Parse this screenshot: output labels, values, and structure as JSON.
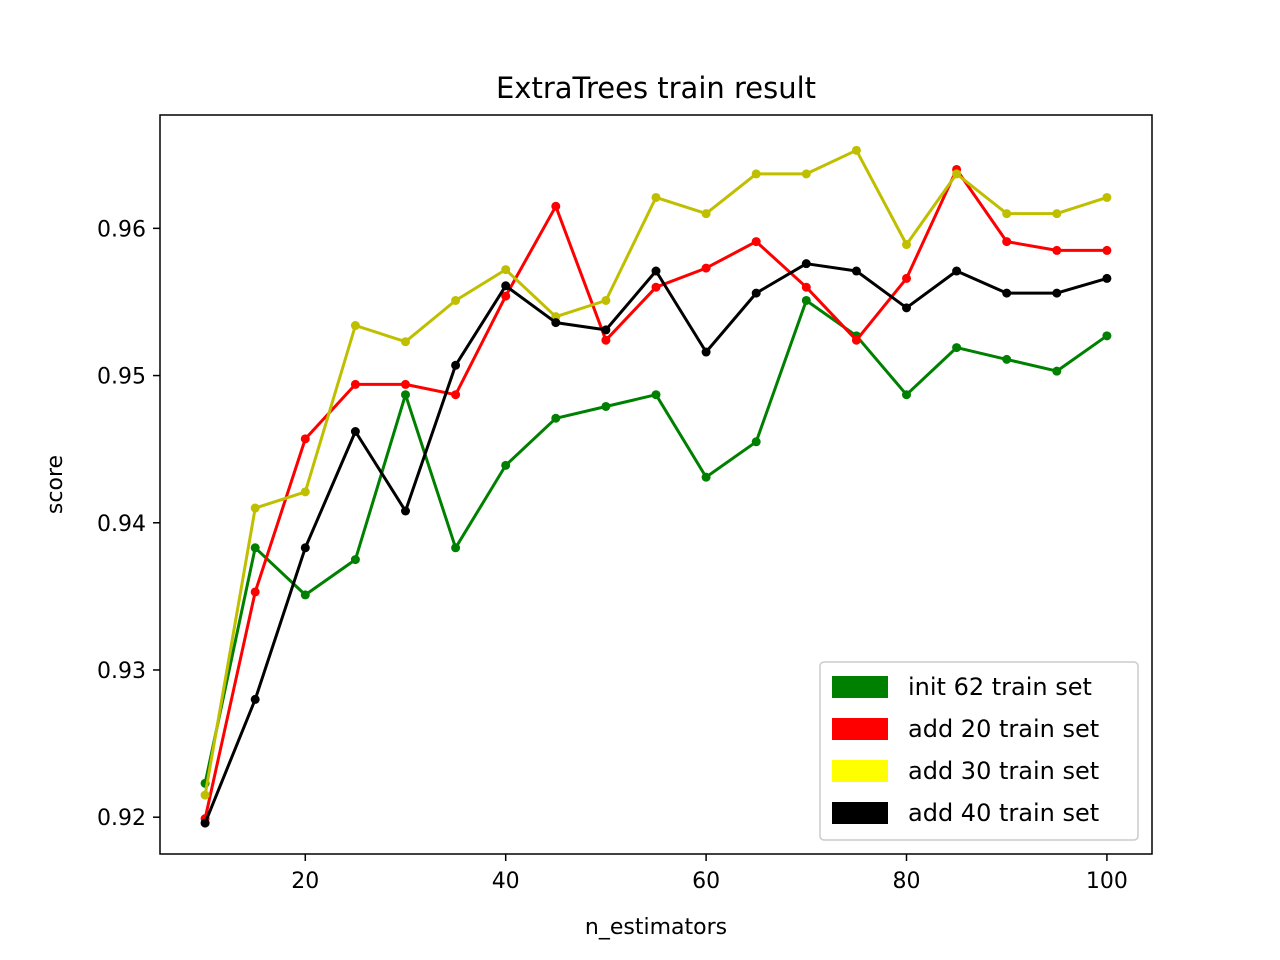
{
  "chart_data": {
    "type": "line",
    "title": "ExtraTrees train result",
    "xlabel": "n_estimators",
    "ylabel": "score",
    "xlim": [
      5.5,
      104.5
    ],
    "ylim": [
      0.9175,
      0.9677
    ],
    "xticks": [
      20,
      40,
      60,
      80,
      100
    ],
    "xtick_labels": [
      "20",
      "40",
      "60",
      "80",
      "100"
    ],
    "yticks": [
      0.92,
      0.93,
      0.94,
      0.95,
      0.96
    ],
    "ytick_labels": [
      "0.92",
      "0.93",
      "0.94",
      "0.95",
      "0.96"
    ],
    "grid": false,
    "legend_position": "lower-right",
    "x": [
      10,
      15,
      20,
      25,
      30,
      35,
      40,
      45,
      50,
      55,
      60,
      65,
      70,
      75,
      80,
      85,
      90,
      95,
      100
    ],
    "series": [
      {
        "name": "init 62 train set",
        "color": "#008000",
        "legend_color": "#008000",
        "values": [
          0.9223,
          0.9383,
          0.9351,
          0.9375,
          0.9487,
          0.9383,
          0.9439,
          0.9471,
          0.9479,
          0.9487,
          0.9431,
          0.9455,
          0.9551,
          0.9527,
          0.9487,
          0.9519,
          0.9511,
          0.9503,
          0.9527
        ]
      },
      {
        "name": "add 20 train set",
        "color": "#ff0000",
        "legend_color": "#ff0000",
        "values": [
          0.9199,
          0.9353,
          0.9457,
          0.9494,
          0.9494,
          0.9487,
          0.9554,
          0.9615,
          0.9524,
          0.956,
          0.9573,
          0.9591,
          0.956,
          0.9524,
          0.9566,
          0.964,
          0.9591,
          0.9585,
          0.9585
        ]
      },
      {
        "name": "add 30 train set",
        "color": "#bfbf00",
        "legend_color": "#ffff00",
        "values": [
          0.9215,
          0.941,
          0.9421,
          0.9534,
          0.9523,
          0.9551,
          0.9572,
          0.954,
          0.9551,
          0.9621,
          0.961,
          0.9637,
          0.9637,
          0.9653,
          0.9589,
          0.9637,
          0.961,
          0.961,
          0.9621
        ]
      },
      {
        "name": "add 40 train set",
        "color": "#000000",
        "legend_color": "#000000",
        "values": [
          0.9196,
          0.928,
          0.9383,
          0.9462,
          0.9408,
          0.9507,
          0.9561,
          0.9536,
          0.9531,
          0.9571,
          0.9516,
          0.9556,
          0.9576,
          0.9571,
          0.9546,
          0.9571,
          0.9556,
          0.9556,
          0.9566
        ]
      }
    ]
  }
}
